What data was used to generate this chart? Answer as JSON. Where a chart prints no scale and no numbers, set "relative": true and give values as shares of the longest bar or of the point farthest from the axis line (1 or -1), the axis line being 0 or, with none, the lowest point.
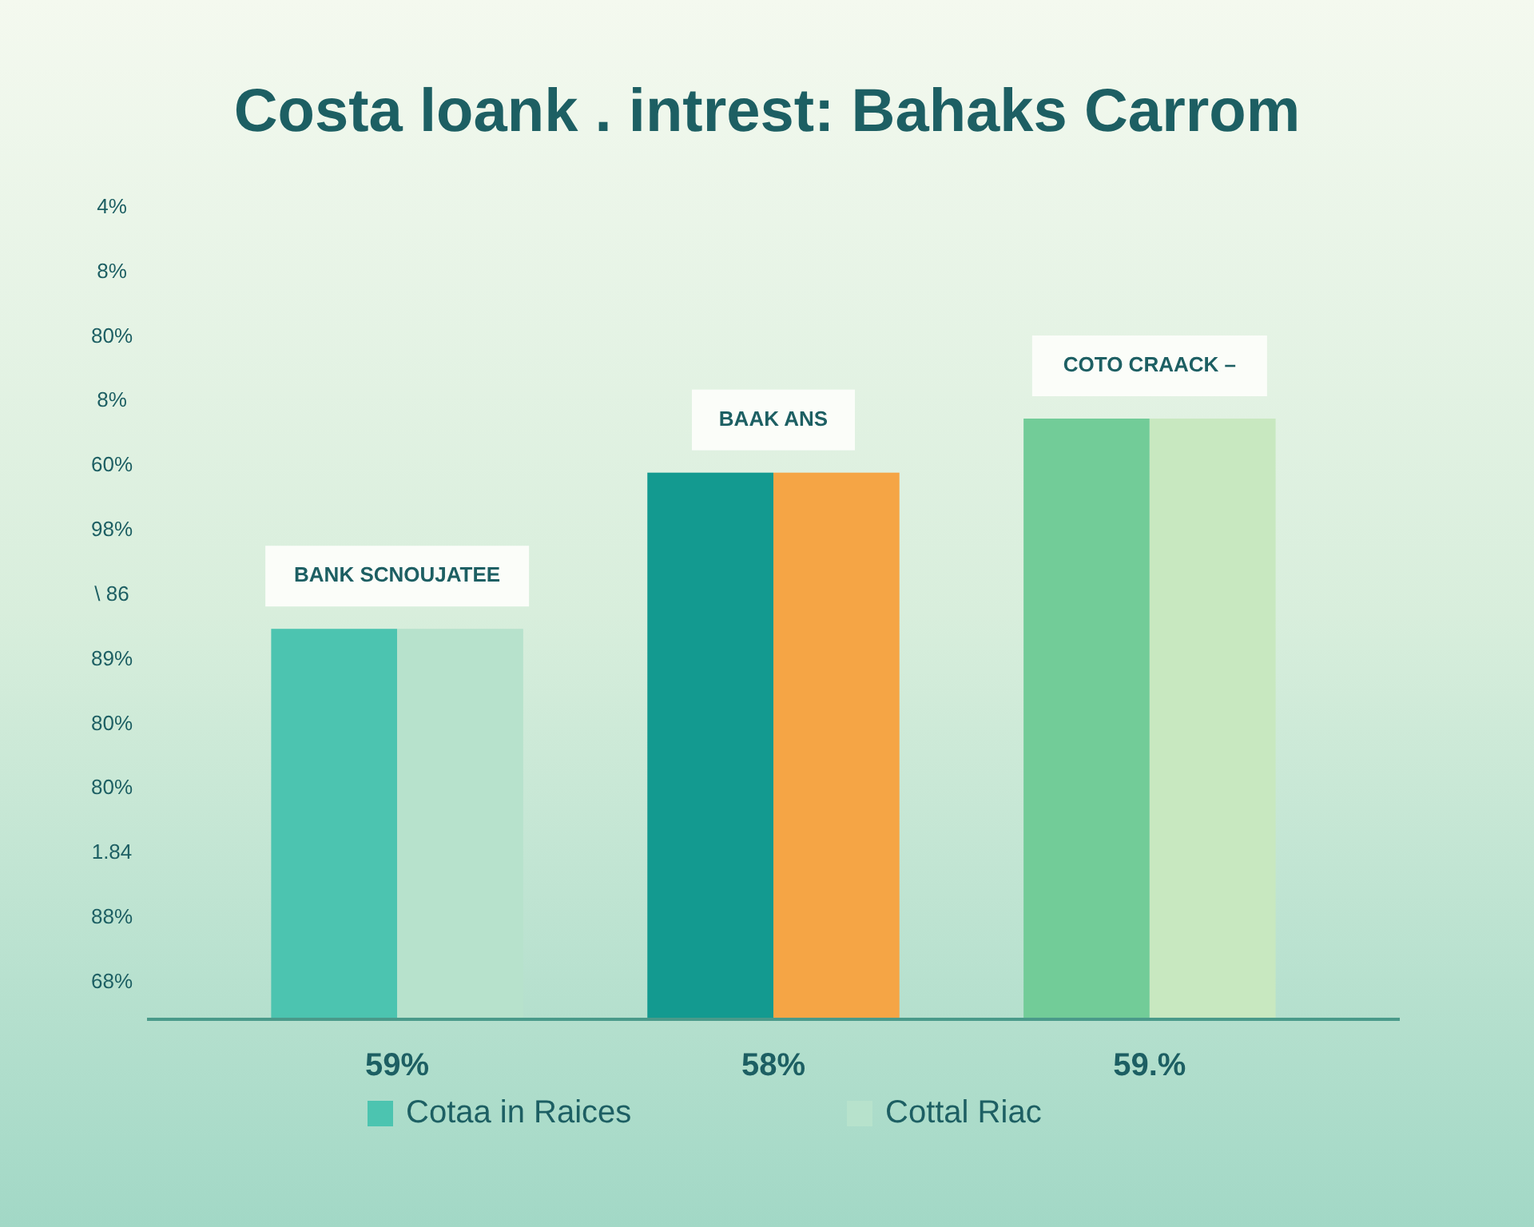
{
  "chart_data": {
    "type": "bar",
    "title": "Costa loank . intrest: Bahaks Carrom",
    "relative": true,
    "categories": [
      "59%",
      "58%",
      "59.%"
    ],
    "series": [
      {
        "name": "Cotaa in Raices",
        "color": "#4cc4b0",
        "colors": [
          "#4cc4b0",
          "#139a90",
          "#72cc98"
        ],
        "values": [
          0.65,
          0.91,
          1
        ]
      },
      {
        "name": "Cottal Riac",
        "color": "#b7e2cc",
        "colors": [
          "#b7e2cc",
          "#f5a545",
          "#c8e8c0"
        ],
        "values": [
          0.65,
          0.91,
          1
        ]
      }
    ],
    "annotations": [
      {
        "text": "BANK SCNOUJATEE",
        "x": "59%",
        "y": 0.65
      },
      {
        "text": "BAAK ANS",
        "x": "58%",
        "y": 0.91
      },
      {
        "text": "COTO CRAACK –",
        "x": "59.%",
        "y": 1
      },
      "4%",
      "8%",
      "80%",
      "8%",
      "60%",
      "98%",
      "\\ 86",
      "89%",
      "80%",
      "80%",
      "1.84",
      "88%",
      "68%"
    ],
    "legend": "bottom"
  }
}
